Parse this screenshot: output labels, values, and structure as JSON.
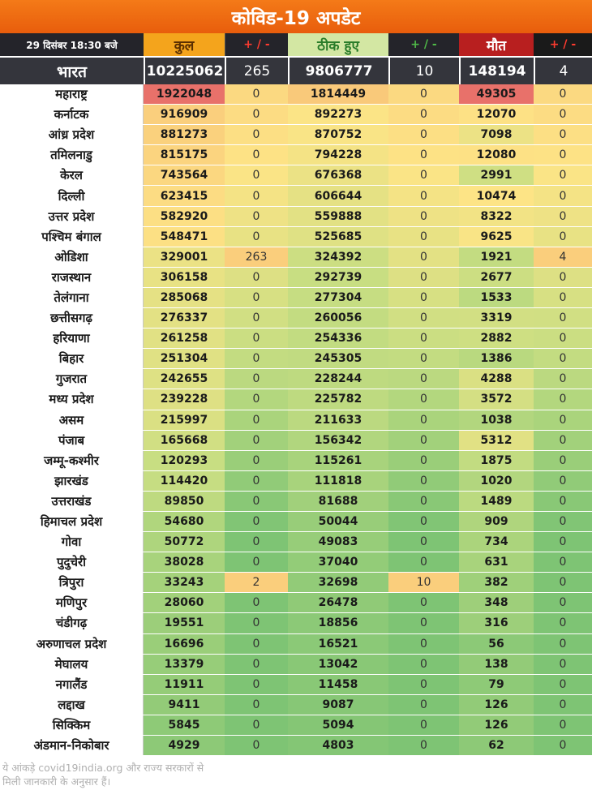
{
  "title": "कोविड-19 अपडेट",
  "header": {
    "date": "29 दिसंबर 18:30 बजे",
    "total": "कुल",
    "total_change": "+ / -",
    "recovered": "ठीक हुए",
    "recovered_change": "+ / -",
    "deaths": "मौत",
    "deaths_change": "+ / -"
  },
  "india": {
    "name": "भारत",
    "total": "10225062",
    "total_change": "265",
    "recovered": "9806777",
    "recovered_change": "10",
    "deaths": "148194",
    "deaths_change": "4"
  },
  "states": [
    {
      "name": "महाराष्ट्र",
      "total": "1922048",
      "tc": "0",
      "rec": "1814449",
      "rc": "0",
      "deaths": "49305",
      "dc": "0"
    },
    {
      "name": "कर्नाटक",
      "total": "916909",
      "tc": "0",
      "rec": "892273",
      "rc": "0",
      "deaths": "12070",
      "dc": "0"
    },
    {
      "name": "आंध्र प्रदेश",
      "total": "881273",
      "tc": "0",
      "rec": "870752",
      "rc": "0",
      "deaths": "7098",
      "dc": "0"
    },
    {
      "name": "तमिलनाडु",
      "total": "815175",
      "tc": "0",
      "rec": "794228",
      "rc": "0",
      "deaths": "12080",
      "dc": "0"
    },
    {
      "name": "केरल",
      "total": "743564",
      "tc": "0",
      "rec": "676368",
      "rc": "0",
      "deaths": "2991",
      "dc": "0"
    },
    {
      "name": "दिल्ली",
      "total": "623415",
      "tc": "0",
      "rec": "606644",
      "rc": "0",
      "deaths": "10474",
      "dc": "0"
    },
    {
      "name": "उत्तर प्रदेश",
      "total": "582920",
      "tc": "0",
      "rec": "559888",
      "rc": "0",
      "deaths": "8322",
      "dc": "0"
    },
    {
      "name": "पश्चिम बंगाल",
      "total": "548471",
      "tc": "0",
      "rec": "525685",
      "rc": "0",
      "deaths": "9625",
      "dc": "0"
    },
    {
      "name": "ओडिशा",
      "total": "329001",
      "tc": "263",
      "rec": "324392",
      "rc": "0",
      "deaths": "1921",
      "dc": "4"
    },
    {
      "name": "राजस्थान",
      "total": "306158",
      "tc": "0",
      "rec": "292739",
      "rc": "0",
      "deaths": "2677",
      "dc": "0"
    },
    {
      "name": "तेलंगाना",
      "total": "285068",
      "tc": "0",
      "rec": "277304",
      "rc": "0",
      "deaths": "1533",
      "dc": "0"
    },
    {
      "name": "छत्तीसगढ़",
      "total": "276337",
      "tc": "0",
      "rec": "260056",
      "rc": "0",
      "deaths": "3319",
      "dc": "0"
    },
    {
      "name": "हरियाणा",
      "total": "261258",
      "tc": "0",
      "rec": "254336",
      "rc": "0",
      "deaths": "2882",
      "dc": "0"
    },
    {
      "name": "बिहार",
      "total": "251304",
      "tc": "0",
      "rec": "245305",
      "rc": "0",
      "deaths": "1386",
      "dc": "0"
    },
    {
      "name": "गुजरात",
      "total": "242655",
      "tc": "0",
      "rec": "228244",
      "rc": "0",
      "deaths": "4288",
      "dc": "0"
    },
    {
      "name": "मध्य प्रदेश",
      "total": "239228",
      "tc": "0",
      "rec": "225782",
      "rc": "0",
      "deaths": "3572",
      "dc": "0"
    },
    {
      "name": "असम",
      "total": "215997",
      "tc": "0",
      "rec": "211633",
      "rc": "0",
      "deaths": "1038",
      "dc": "0"
    },
    {
      "name": "पंजाब",
      "total": "165668",
      "tc": "0",
      "rec": "156342",
      "rc": "0",
      "deaths": "5312",
      "dc": "0"
    },
    {
      "name": "जम्मू-कश्मीर",
      "total": "120293",
      "tc": "0",
      "rec": "115261",
      "rc": "0",
      "deaths": "1875",
      "dc": "0"
    },
    {
      "name": "झारखंड",
      "total": "114420",
      "tc": "0",
      "rec": "111818",
      "rc": "0",
      "deaths": "1020",
      "dc": "0"
    },
    {
      "name": "उत्तराखंड",
      "total": "89850",
      "tc": "0",
      "rec": "81688",
      "rc": "0",
      "deaths": "1489",
      "dc": "0"
    },
    {
      "name": "हिमाचल प्रदेश",
      "total": "54680",
      "tc": "0",
      "rec": "50044",
      "rc": "0",
      "deaths": "909",
      "dc": "0"
    },
    {
      "name": "गोवा",
      "total": "50772",
      "tc": "0",
      "rec": "49083",
      "rc": "0",
      "deaths": "734",
      "dc": "0"
    },
    {
      "name": "पुदुचेरी",
      "total": "38028",
      "tc": "0",
      "rec": "37040",
      "rc": "0",
      "deaths": "631",
      "dc": "0"
    },
    {
      "name": "त्रिपुरा",
      "total": "33243",
      "tc": "2",
      "rec": "32698",
      "rc": "10",
      "deaths": "382",
      "dc": "0"
    },
    {
      "name": "मणिपुर",
      "total": "28060",
      "tc": "0",
      "rec": "26478",
      "rc": "0",
      "deaths": "348",
      "dc": "0"
    },
    {
      "name": "चंडीगढ़",
      "total": "19551",
      "tc": "0",
      "rec": "18856",
      "rc": "0",
      "deaths": "316",
      "dc": "0"
    },
    {
      "name": "अरुणाचल प्रदेश",
      "total": "16696",
      "tc": "0",
      "rec": "16521",
      "rc": "0",
      "deaths": "56",
      "dc": "0"
    },
    {
      "name": "मेघालय",
      "total": "13379",
      "tc": "0",
      "rec": "13042",
      "rc": "0",
      "deaths": "138",
      "dc": "0"
    },
    {
      "name": "नगालैंड",
      "total": "11911",
      "tc": "0",
      "rec": "11458",
      "rc": "0",
      "deaths": "79",
      "dc": "0"
    },
    {
      "name": "लद्दाख",
      "total": "9411",
      "tc": "0",
      "rec": "9087",
      "rc": "0",
      "deaths": "126",
      "dc": "0"
    },
    {
      "name": "सिक्किम",
      "total": "5845",
      "tc": "0",
      "rec": "5094",
      "rc": "0",
      "deaths": "126",
      "dc": "0"
    },
    {
      "name": "अंडमान-निकोबार",
      "total": "4929",
      "tc": "0",
      "rec": "4803",
      "rc": "0",
      "deaths": "62",
      "dc": "0"
    }
  ],
  "footnote": {
    "line1": "ये आंकड़े covid19india.org और राज्य सरकारों से",
    "line2": "मिली जानकारी के अनुसार हैं।"
  },
  "colors": {
    "banner": "#e86a10",
    "header_dark": "#24242a",
    "india_row": "#34353c",
    "heat_red": "#e8716a",
    "heat_orange": "#f9c97a",
    "heat_yellow": "#fde486",
    "heat_green": "#7ec474"
  }
}
